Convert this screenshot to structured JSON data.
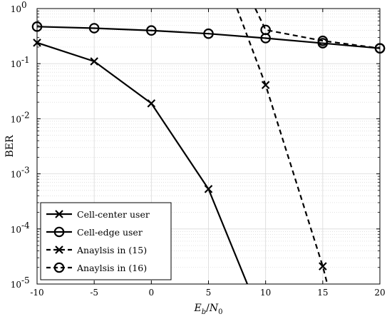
{
  "chart_data": {
    "type": "line",
    "xlabel": "E_b/N_0",
    "ylabel": "BER",
    "xlim": [
      -10,
      20
    ],
    "ylim": [
      1e-05,
      1
    ],
    "yscale": "log",
    "grid": true,
    "minor_grid": true,
    "legend_placement": "bottom-left",
    "xticks": [
      -10,
      -5,
      0,
      5,
      10,
      15,
      20
    ],
    "xtick_labels": [
      "-10",
      "-5",
      "0",
      "5",
      "10",
      "15",
      "20"
    ],
    "yticks": [
      1e-05,
      0.0001,
      0.001,
      0.01,
      0.1,
      1
    ],
    "ytick_bases": [
      "10",
      "10",
      "10",
      "10",
      "10",
      "10"
    ],
    "ytick_exponents": [
      "-5",
      "-4",
      "-3",
      "-2",
      "-1",
      "0"
    ],
    "series": [
      {
        "name": "Cell-center user",
        "style": "solid",
        "marker": "x",
        "color": "#000000",
        "x": [
          -10,
          -5,
          0,
          5,
          8.4
        ],
        "y": [
          0.24,
          0.11,
          0.019,
          0.00053,
          1e-05
        ],
        "marker_x": [
          -10,
          -5,
          0,
          5
        ],
        "marker_y": [
          0.24,
          0.11,
          0.019,
          0.00053
        ]
      },
      {
        "name": "Cell-edge user",
        "style": "solid",
        "marker": "o",
        "color": "#000000",
        "x": [
          -10,
          -5,
          0,
          5,
          10,
          15,
          20
        ],
        "y": [
          0.47,
          0.44,
          0.4,
          0.35,
          0.29,
          0.235,
          0.19
        ],
        "marker_x": [
          -10,
          -5,
          0,
          5,
          10,
          15,
          20
        ],
        "marker_y": [
          0.47,
          0.44,
          0.4,
          0.35,
          0.29,
          0.235,
          0.19
        ]
      },
      {
        "name": "Anaylsis in (15)",
        "style": "dashed",
        "marker": "x",
        "color": "#000000",
        "x": [
          7.5,
          10,
          15,
          15.4
        ],
        "y": [
          1,
          0.041,
          2.1e-05,
          1e-05
        ],
        "marker_x": [
          10,
          15
        ],
        "marker_y": [
          0.041,
          2.1e-05
        ]
      },
      {
        "name": "Anaylsis in (16)",
        "style": "dashed",
        "marker": "o",
        "color": "#000000",
        "x": [
          9.1,
          10,
          15,
          20
        ],
        "y": [
          1,
          0.41,
          0.26,
          0.19
        ],
        "marker_x": [
          10,
          15,
          20
        ],
        "marker_y": [
          0.41,
          0.26,
          0.19
        ]
      }
    ]
  }
}
